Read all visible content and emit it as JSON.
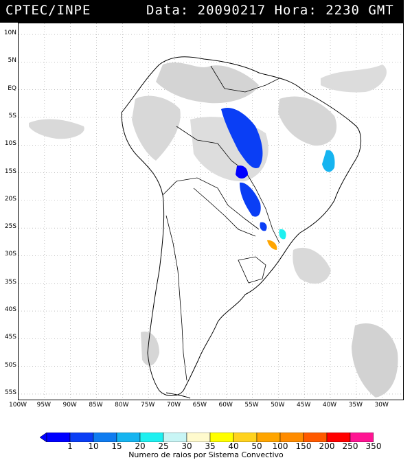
{
  "header": {
    "org": "CPTEC/INPE",
    "datetime": "Data: 20090217 Hora: 2230 GMT"
  },
  "map": {
    "lat_labels": [
      "10N",
      "5N",
      "EQ",
      "5S",
      "10S",
      "15S",
      "20S",
      "25S",
      "30S",
      "35S",
      "40S",
      "45S",
      "50S",
      "55S"
    ],
    "lon_labels": [
      "100W",
      "95W",
      "90W",
      "85W",
      "80W",
      "75W",
      "70W",
      "65W",
      "60W",
      "55W",
      "50W",
      "45W",
      "40W",
      "35W",
      "30W"
    ],
    "extent": {
      "lon_min": -100,
      "lon_max": -26,
      "lat_min": -56,
      "lat_max": 12
    }
  },
  "colorbar": {
    "labels": [
      "1",
      "10",
      "15",
      "20",
      "25",
      "30",
      "35",
      "40",
      "50",
      "100",
      "150",
      "200",
      "250",
      "350"
    ],
    "colors": [
      "#0000ff",
      "#0a3ef5",
      "#0f7cf0",
      "#16b4f0",
      "#1ef0f0",
      "#c8f5f5",
      "#fffacd",
      "#ffff00",
      "#ffd21e",
      "#ffa500",
      "#ff8c00",
      "#ff5a00",
      "#ff0000",
      "#ff1493"
    ],
    "caption": "Numero de raios por Sistema Convectivo"
  }
}
